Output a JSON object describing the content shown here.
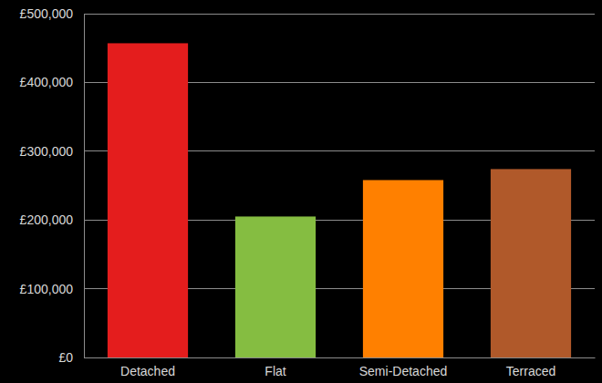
{
  "chart_data": {
    "type": "bar",
    "categories": [
      "Detached",
      "Flat",
      "Semi-Detached",
      "Terraced"
    ],
    "values": [
      457000,
      205000,
      258000,
      274000
    ],
    "colors": [
      "#e41d1d",
      "#85bd41",
      "#ff8000",
      "#b0592a"
    ],
    "ylim": [
      0,
      500000
    ],
    "yticks": [
      {
        "value": 0,
        "label": "£0"
      },
      {
        "value": 100000,
        "label": "£100,000"
      },
      {
        "value": 200000,
        "label": "£200,000"
      },
      {
        "value": 300000,
        "label": "£300,000"
      },
      {
        "value": 400000,
        "label": "£400,000"
      },
      {
        "value": 500000,
        "label": "£500,000"
      }
    ],
    "grid": true
  }
}
